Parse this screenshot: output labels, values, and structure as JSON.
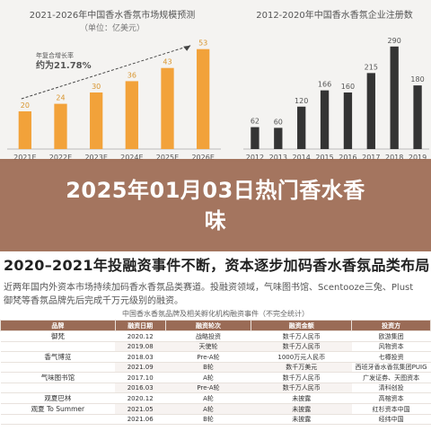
{
  "chart_data": [
    {
      "type": "bar",
      "title": "2021-2026年中国香水香氛市场规模预测",
      "unit_label": "（单位：亿美元）",
      "categories": [
        "2021E",
        "2022E",
        "2023E",
        "2024E",
        "2025E",
        "2026E"
      ],
      "values": [
        20,
        24,
        30,
        36,
        43,
        53
      ],
      "annotation": "年复合增长率\n约为21.78%",
      "annotation_lines": [
        "年复合增长率",
        "约为21.78%"
      ],
      "ylim": [
        0,
        60
      ],
      "colors": {
        "bar": "#f2a23a",
        "label": "#d8952e"
      }
    },
    {
      "type": "bar",
      "title": "2012-2020年中国香水香氛企业注册数",
      "unit_label": "",
      "categories": [
        "2012",
        "2013",
        "2014",
        "2015",
        "2016",
        "2017",
        "2018",
        "2019"
      ],
      "values": [
        62,
        60,
        120,
        166,
        160,
        215,
        290,
        180
      ],
      "ylim": [
        0,
        320
      ],
      "colors": {
        "bar": "#343434",
        "label": "#555555"
      }
    }
  ],
  "banner": {
    "title_line1": "2025年01月03日热门香水香",
    "title_line2": "味"
  },
  "doc": {
    "heading": "2020–2021年投融资事件不断，资本逐步加码香水香氛品类布局",
    "line1": "近两年国内外资本市场持续加码香水香氛品类赛道。投融资领域，气味图书馆、Scentooze三兔、Plust",
    "line2": "御梵等香氛品牌先后完成千万元级别的融资。",
    "table_title": "中国香水香氛品牌及相关孵化机构融资事件（不完全统计）",
    "table_headers": [
      "品牌",
      "融资日期",
      "融资轮次",
      "融资金额",
      "投资方"
    ],
    "rows": [
      {
        "brand": "御梵",
        "date": "2020.12",
        "round": "战略投资",
        "amount": "数千万人民币",
        "investor": "欧游集团"
      },
      {
        "brand": "",
        "date": "2019.08",
        "round": "天使轮",
        "amount": "数千万人民币",
        "investor": "风物资本"
      },
      {
        "brand": "香气博览",
        "date": "2018.03",
        "round": "Pre-A轮",
        "amount": "1000万元人民币",
        "investor": "七樽投资"
      },
      {
        "brand": "",
        "date": "2021.09",
        "round": "B轮",
        "amount": "数千万美元",
        "investor": "西班牙香水香氛集团PUIG"
      },
      {
        "brand": "气味图书馆",
        "date": "2017.10",
        "round": "A轮",
        "amount": "数千万人民币",
        "investor": "广发证券、天图资本"
      },
      {
        "brand": "",
        "date": "2016.03",
        "round": "Pre-A轮",
        "amount": "数千万人民币",
        "investor": "清科创投"
      },
      {
        "brand": "观夏巴林",
        "date": "2020.12",
        "round": "A轮",
        "amount": "未披露",
        "investor": "高榕资本"
      },
      {
        "brand": "观夏 To Summer",
        "date": "2021.05",
        "round": "A轮",
        "amount": "未披露",
        "investor": "红杉资本中国"
      },
      {
        "brand": "",
        "date": "2021.06",
        "round": "B轮",
        "amount": "未披露",
        "investor": "经纬中国"
      }
    ]
  }
}
